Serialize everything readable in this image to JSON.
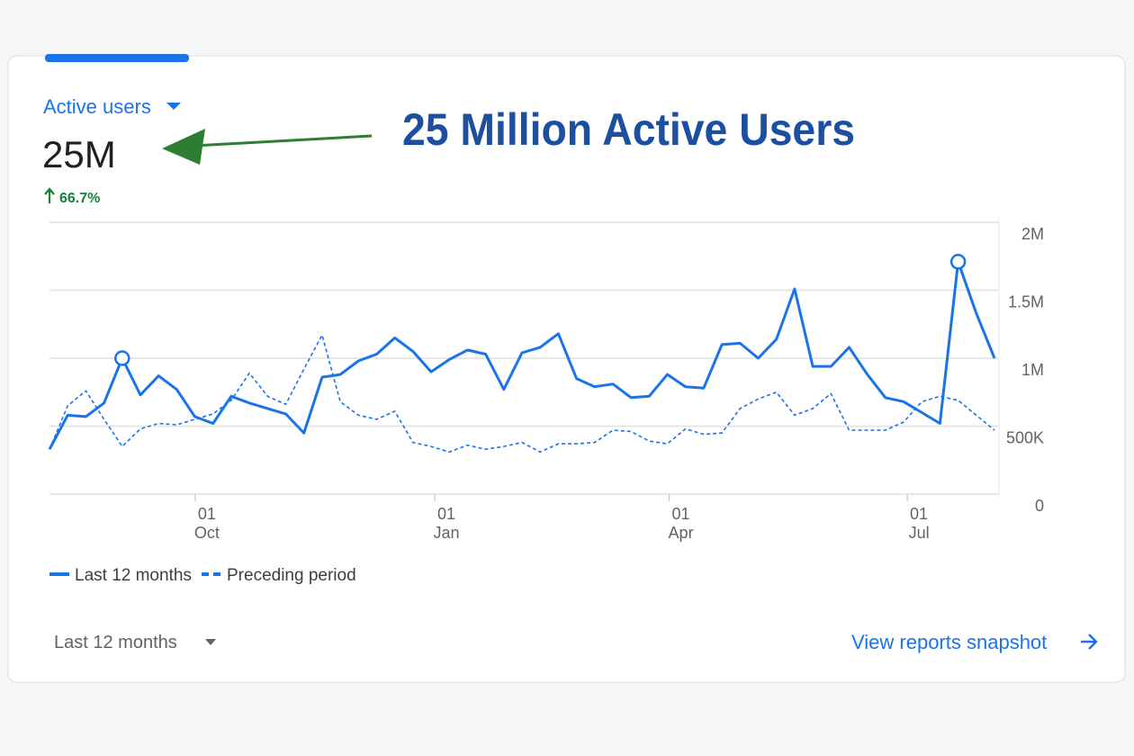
{
  "card": {
    "metric_label": "Active users",
    "metric_value": "25M",
    "change": "66.7%"
  },
  "annotation": "25 Million Active Users",
  "chart_data": {
    "type": "line",
    "categories": [
      null,
      null,
      null,
      null,
      null,
      null,
      null,
      null,
      null,
      null,
      null,
      null,
      null,
      null,
      null,
      null,
      null,
      null,
      null,
      null,
      null,
      null,
      null,
      null,
      null,
      null,
      null,
      null,
      null,
      null,
      null,
      null,
      null,
      null,
      null,
      null,
      null,
      null,
      null,
      null,
      null,
      null,
      null,
      null,
      null,
      null,
      null,
      null,
      null,
      null,
      null,
      null,
      null
    ],
    "series": [
      {
        "name": "Last 12 months",
        "color": "#1a73e8",
        "dash": false,
        "values": [
          330000,
          580000,
          570000,
          670000,
          1000000,
          730000,
          870000,
          770000,
          570000,
          520000,
          720000,
          670000,
          630000,
          590000,
          450000,
          860000,
          880000,
          980000,
          1030000,
          1150000,
          1050000,
          900000,
          990000,
          1060000,
          1030000,
          770000,
          1040000,
          1080000,
          1180000,
          850000,
          790000,
          810000,
          710000,
          720000,
          880000,
          790000,
          780000,
          1100000,
          1110000,
          1000000,
          1140000,
          1510000,
          940000,
          940000,
          1080000,
          880000,
          710000,
          680000,
          600000,
          520000,
          1710000,
          1330000,
          1000000
        ]
      },
      {
        "name": "Preceding period",
        "color": "#1a73e8",
        "dash": true,
        "values": [
          330000,
          650000,
          760000,
          550000,
          350000,
          480000,
          520000,
          510000,
          550000,
          590000,
          690000,
          890000,
          720000,
          660000,
          920000,
          1170000,
          680000,
          580000,
          550000,
          610000,
          380000,
          350000,
          310000,
          360000,
          330000,
          350000,
          380000,
          310000,
          370000,
          370000,
          380000,
          470000,
          460000,
          390000,
          370000,
          480000,
          440000,
          450000,
          630000,
          700000,
          750000,
          580000,
          630000,
          740000,
          470000,
          470000,
          470000,
          530000,
          680000,
          720000,
          690000,
          580000,
          470000
        ]
      }
    ],
    "highlighted": [
      4,
      50
    ],
    "ylim": [
      0,
      2000000
    ],
    "yticks": [
      {
        "value": 0,
        "label": "0"
      },
      {
        "value": 500000,
        "label": "500K"
      },
      {
        "value": 1000000,
        "label": "1M"
      },
      {
        "value": 1500000,
        "label": "1.5M"
      },
      {
        "value": 2000000,
        "label": "2M"
      }
    ],
    "xticks": [
      {
        "value": 8.02,
        "label": "01 Oct"
      },
      {
        "value": 21.2,
        "label": "01 Jan"
      },
      {
        "value": 34.1,
        "label": "01 Apr"
      },
      {
        "value": 47.2,
        "label": "01 Jul"
      }
    ],
    "grid": true
  },
  "footer": {
    "range_selector": "Last 12 months",
    "link": "View reports snapshot"
  }
}
